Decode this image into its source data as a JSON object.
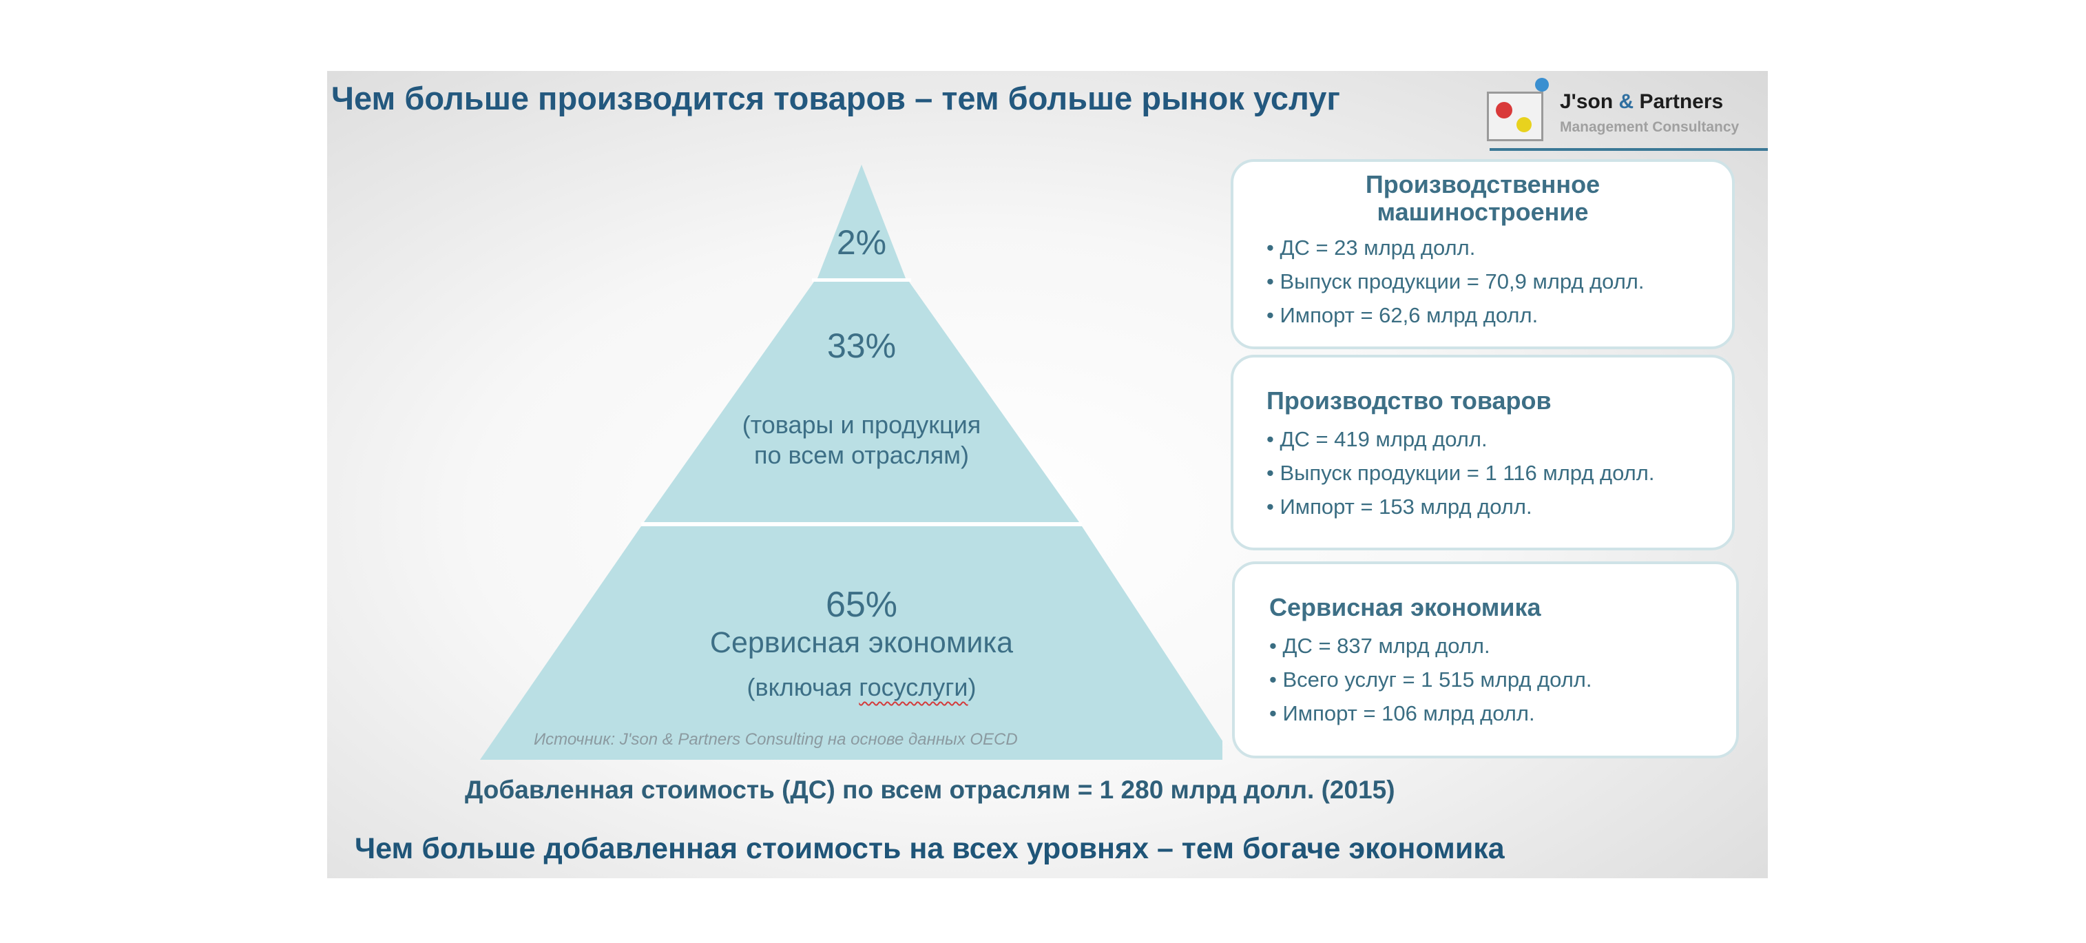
{
  "title": "Чем больше производится товаров – тем больше рынок услуг",
  "logo": {
    "name_part1": "J'son",
    "name_amp": " & ",
    "name_part2": "Partners",
    "subtitle": "Management Consultancy"
  },
  "pyramid": {
    "tiers": [
      {
        "percent": "2%"
      },
      {
        "percent": "33%",
        "label_line1": "(товары и продукция",
        "label_line2": "по всем отраслям)"
      },
      {
        "percent": "65%",
        "label": "Сервисная экономика",
        "note_prefix": "(включая ",
        "note_word": "госуслуги",
        "note_suffix": ")"
      }
    ],
    "source": "Источник: J'son & Partners Consulting на основе данных OECD"
  },
  "cards": [
    {
      "title_line1": "Производственное",
      "title_line2": "машиностроение",
      "items": [
        "ДС = 23 млрд долл.",
        "Выпуск продукции  = 70,9 млрд долл.",
        "Импорт = 62,6 млрд долл."
      ]
    },
    {
      "title": "Производство товаров",
      "items": [
        "ДС = 419 млрд долл.",
        "Выпуск продукции  = 1 116 млрд долл.",
        "Импорт = 153 млрд долл."
      ]
    },
    {
      "title": "Сервисная экономика",
      "items": [
        "ДС = 837 млрд долл.",
        "Всего услуг = 1 515 млрд долл.",
        "Импорт = 106 млрд долл."
      ]
    }
  ],
  "footer": {
    "value_added": "Добавленная стоимость (ДС)  по всем отраслям = 1 280 млрд долл. (2015)",
    "conclusion": "Чем больше добавленная стоимость на всех уровнях – тем богаче экономика"
  },
  "colors": {
    "title": "#23587e",
    "pyramid_fill": "#badfe4",
    "pyramid_text": "#3d6f86",
    "card_border": "#cfe3e7"
  }
}
